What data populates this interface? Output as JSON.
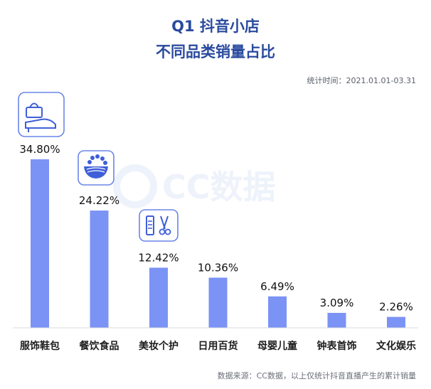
{
  "header": {
    "title_line1": "Q1 抖音小店",
    "title_line2": "不同品类销量占比",
    "period": "统计时间：2021.01.01-03.31"
  },
  "watermark": {
    "text": "CC数据"
  },
  "footer": {
    "source": "数据来源：CC数据，以上仅统计抖音直播产生的累计销量"
  },
  "colors": {
    "bar": "#7b93f5",
    "title": "#2a4a9e",
    "icon_border": "#6a86e8"
  },
  "icons": [
    "high-heel-handbag-icon",
    "food-bowl-icon",
    "comb-scissors-icon"
  ],
  "chart_data": {
    "type": "bar",
    "title": "Q1 抖音小店 不同品类销量占比",
    "categories": [
      "服饰鞋包",
      "餐饮食品",
      "美妆个护",
      "日用百货",
      "母婴儿童",
      "钟表首饰",
      "文化娱乐"
    ],
    "values": [
      34.8,
      24.22,
      12.42,
      10.36,
      6.49,
      3.09,
      2.26
    ],
    "value_labels": [
      "34.80%",
      "24.22%",
      "12.42%",
      "10.36%",
      "6.49%",
      "3.09%",
      "2.26%"
    ],
    "ylim": [
      0,
      34.8
    ],
    "grid": false,
    "legend": "none"
  }
}
